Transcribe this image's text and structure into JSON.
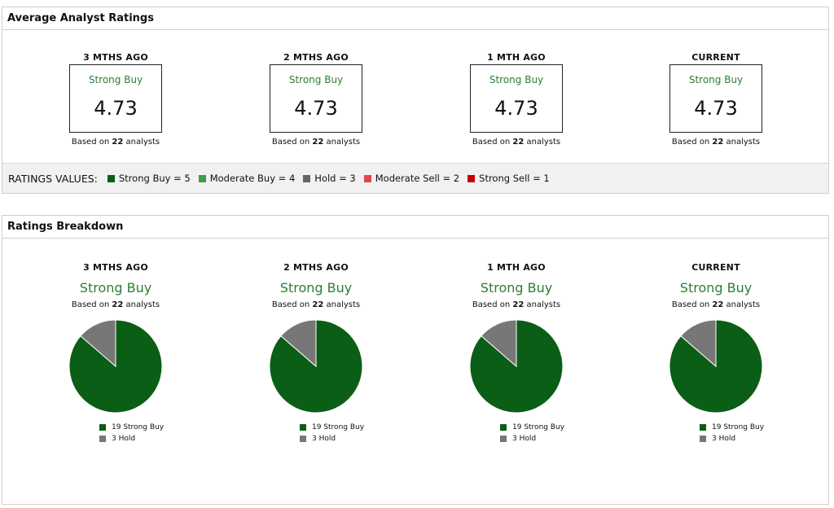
{
  "avg_panel": {
    "title": "Average Analyst Ratings",
    "columns": [
      {
        "period": "3 MTHS AGO",
        "rating": "Strong Buy",
        "score": "4.73",
        "based_prefix": "Based on",
        "count": "22",
        "based_suffix": "analysts"
      },
      {
        "period": "2 MTHS AGO",
        "rating": "Strong Buy",
        "score": "4.73",
        "based_prefix": "Based on",
        "count": "22",
        "based_suffix": "analysts"
      },
      {
        "period": "1 MTH AGO",
        "rating": "Strong Buy",
        "score": "4.73",
        "based_prefix": "Based on",
        "count": "22",
        "based_suffix": "analysts"
      },
      {
        "period": "CURRENT",
        "rating": "Strong Buy",
        "score": "4.73",
        "based_prefix": "Based on",
        "count": "22",
        "based_suffix": "analysts"
      }
    ],
    "legend": {
      "title": "RATINGS VALUES:",
      "items": [
        {
          "label": "Strong Buy = 5",
          "color": "#0b5e15"
        },
        {
          "label": "Moderate Buy = 4",
          "color": "#3f9b47"
        },
        {
          "label": "Hold = 3",
          "color": "#666666"
        },
        {
          "label": "Moderate Sell = 2",
          "color": "#e04848"
        },
        {
          "label": "Strong Sell = 1",
          "color": "#c40000"
        }
      ]
    }
  },
  "breakdown_panel": {
    "title": "Ratings Breakdown",
    "columns": [
      {
        "period": "3 MTHS AGO",
        "rating": "Strong Buy",
        "based_prefix": "Based on",
        "count": "22",
        "based_suffix": "analysts",
        "legend": [
          "19 Strong Buy",
          "3 Hold"
        ]
      },
      {
        "period": "2 MTHS AGO",
        "rating": "Strong Buy",
        "based_prefix": "Based on",
        "count": "22",
        "based_suffix": "analysts",
        "legend": [
          "19 Strong Buy",
          "3 Hold"
        ]
      },
      {
        "period": "1 MTH AGO",
        "rating": "Strong Buy",
        "based_prefix": "Based on",
        "count": "22",
        "based_suffix": "analysts",
        "legend": [
          "19 Strong Buy",
          "3 Hold"
        ]
      },
      {
        "period": "CURRENT",
        "rating": "Strong Buy",
        "based_prefix": "Based on",
        "count": "22",
        "based_suffix": "analysts",
        "legend": [
          "19 Strong Buy",
          "3 Hold"
        ]
      }
    ]
  },
  "colors": {
    "strong_buy": "#0b5e15",
    "hold": "#777777",
    "rating_text": "#2e7d32"
  },
  "chart_data": [
    {
      "type": "pie",
      "title": "3 MTHS AGO",
      "categories": [
        "Strong Buy",
        "Hold"
      ],
      "values": [
        19,
        3
      ],
      "colors": [
        "#0b5e15",
        "#777777"
      ]
    },
    {
      "type": "pie",
      "title": "2 MTHS AGO",
      "categories": [
        "Strong Buy",
        "Hold"
      ],
      "values": [
        19,
        3
      ],
      "colors": [
        "#0b5e15",
        "#777777"
      ]
    },
    {
      "type": "pie",
      "title": "1 MTH AGO",
      "categories": [
        "Strong Buy",
        "Hold"
      ],
      "values": [
        19,
        3
      ],
      "colors": [
        "#0b5e15",
        "#777777"
      ]
    },
    {
      "type": "pie",
      "title": "CURRENT",
      "categories": [
        "Strong Buy",
        "Hold"
      ],
      "values": [
        19,
        3
      ],
      "colors": [
        "#0b5e15",
        "#777777"
      ]
    }
  ]
}
